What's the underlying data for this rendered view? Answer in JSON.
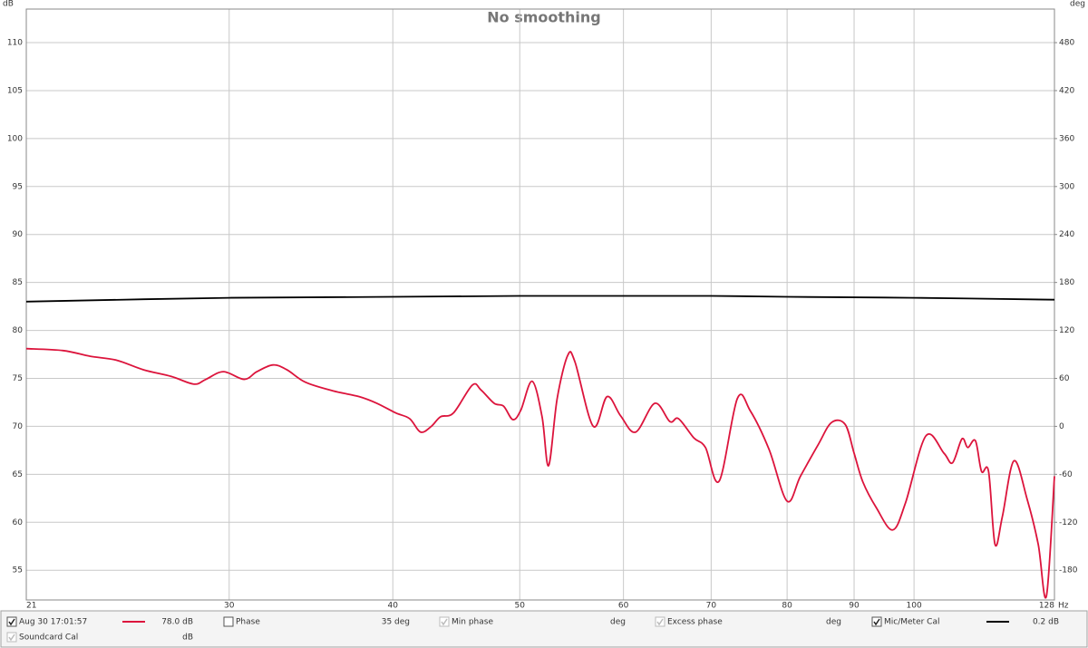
{
  "chart_data": {
    "type": "line",
    "title": "No smoothing",
    "y_label": "dB",
    "y2_label": "deg",
    "x_label": "Hz",
    "log_x": true,
    "grid": true,
    "xlim": [
      21,
      128
    ],
    "xticks": [
      21,
      30,
      40,
      50,
      60,
      70,
      80,
      90,
      100,
      128
    ],
    "ylim": [
      51.9,
      113.5
    ],
    "yticks": [
      55,
      60,
      65,
      70,
      75,
      80,
      85,
      90,
      95,
      100,
      105,
      110
    ],
    "y2lim": [
      -217.2,
      522
    ],
    "y2ticks": [
      -180,
      -120,
      -60,
      0,
      60,
      120,
      180,
      240,
      300,
      360,
      420,
      480
    ],
    "series": [
      {
        "name": "Aug 30 17:01:57",
        "color": "#dc143c",
        "checked": true,
        "readout": "78.0 dB",
        "x": [
          21,
          22.4,
          23.5,
          24.6,
          25.8,
          27.1,
          28.2,
          28.8,
          29.7,
          30.8,
          31.5,
          32.4,
          33.2,
          34.3,
          36.0,
          37.7,
          38.9,
          40.2,
          41.2,
          42.0,
          42.8,
          43.5,
          44.5,
          46.0,
          46.7,
          47.8,
          48.6,
          49.4,
          50.1,
          51.1,
          52.0,
          52.6,
          53.4,
          54.4,
          55.1,
          56.9,
          58.3,
          59.7,
          61.3,
          63.4,
          65.1,
          66.1,
          67.9,
          69.3,
          71.0,
          73.3,
          75.0,
          77.5,
          80.0,
          81.9,
          84.5,
          86.5,
          88.6,
          90.0,
          91.4,
          93.6,
          96.3,
          98.5,
          102.1,
          105.4,
          107.0,
          108.8,
          109.9,
          111.4,
          112.6,
          114.0,
          115.3,
          116.8,
          119.2,
          122.0,
          124.4,
          126.2,
          128.0
        ],
        "values": [
          78.1,
          77.9,
          77.3,
          76.9,
          75.9,
          75.2,
          74.4,
          74.9,
          75.7,
          74.9,
          75.7,
          76.4,
          75.9,
          74.6,
          73.7,
          73.1,
          72.4,
          71.4,
          70.8,
          69.4,
          70.0,
          71.0,
          71.4,
          74.3,
          73.8,
          72.4,
          72.1,
          70.7,
          71.7,
          74.7,
          71.0,
          65.9,
          72.9,
          77.4,
          76.7,
          70.0,
          73.1,
          71.1,
          69.4,
          72.4,
          70.5,
          70.8,
          68.8,
          67.8,
          64.3,
          72.9,
          71.6,
          67.6,
          62.2,
          64.8,
          68.1,
          70.4,
          70.2,
          67.2,
          64.2,
          61.5,
          59.2,
          62.0,
          69.0,
          67.2,
          66.2,
          68.7,
          67.8,
          68.5,
          65.3,
          65.3,
          57.7,
          60.6,
          66.4,
          62.4,
          57.7,
          52.3,
          64.8
        ]
      },
      {
        "name": "Mic/Meter Cal",
        "color": "#000000",
        "checked": true,
        "readout": "0.2 dB",
        "x": [
          21,
          30,
          40,
          50,
          60,
          70,
          80,
          100,
          128
        ],
        "values": [
          83.0,
          83.4,
          83.5,
          83.6,
          83.6,
          83.6,
          83.5,
          83.4,
          83.2
        ]
      }
    ]
  },
  "controls": [
    {
      "label": "Phase",
      "checked": false,
      "enabled": true,
      "readout": "35 deg",
      "color": "#dc143c"
    },
    {
      "label": "Min phase",
      "checked": true,
      "enabled": false,
      "readout": "deg"
    },
    {
      "label": "Excess phase",
      "checked": true,
      "enabled": false,
      "readout": "deg"
    },
    {
      "label": "Soundcard Cal",
      "checked": true,
      "enabled": false,
      "readout": "dB"
    }
  ]
}
